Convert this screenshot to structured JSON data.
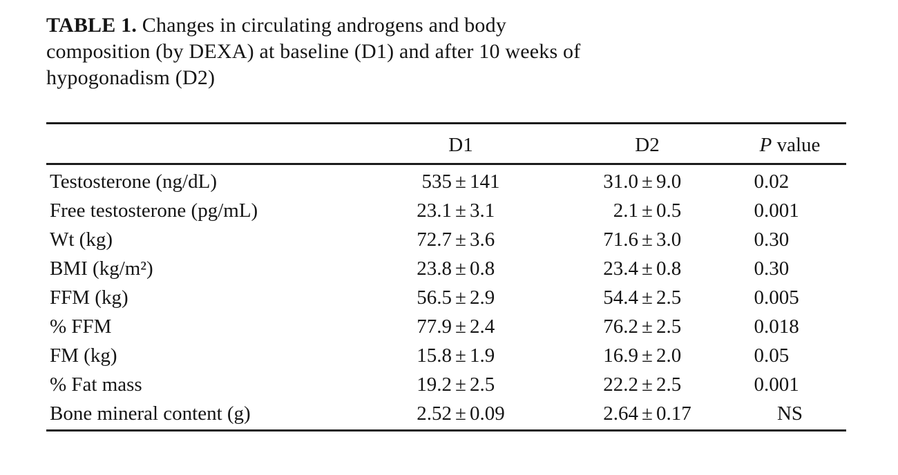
{
  "page": {
    "background": "#ffffff",
    "text_color": "#151515",
    "rule_color": "#1c1c1c"
  },
  "caption": {
    "label": "TABLE 1.",
    "line1": " Changes in circulating androgens and body",
    "line2": "composition (by DEXA) at baseline (D1) and after 10 weeks of",
    "line3": "hypogonadism (D2)"
  },
  "table": {
    "plus_minus": "±",
    "header": {
      "row_label": "",
      "d1": "D1",
      "d2": "D2",
      "p_italic": "P",
      "p_rest": " value"
    },
    "rows": [
      {
        "label": "Testosterone (ng/dL)",
        "d1_mean": "535",
        "d1_sd": "141",
        "d2_mean": "31.0",
        "d2_sd": "9.0",
        "p": "0.02",
        "p_align": "left"
      },
      {
        "label": "Free testosterone (pg/mL)",
        "d1_mean": "23.1",
        "d1_sd": "3.1",
        "d2_mean": "2.1",
        "d2_sd": "0.5",
        "p": "0.001",
        "p_align": "left"
      },
      {
        "label": "Wt (kg)",
        "d1_mean": "72.7",
        "d1_sd": "3.6",
        "d2_mean": "71.6",
        "d2_sd": "3.0",
        "p": "0.30",
        "p_align": "left"
      },
      {
        "label": "BMI (kg/m²)",
        "d1_mean": "23.8",
        "d1_sd": "0.8",
        "d2_mean": "23.4",
        "d2_sd": "0.8",
        "p": "0.30",
        "p_align": "left"
      },
      {
        "label": "FFM (kg)",
        "d1_mean": "56.5",
        "d1_sd": "2.9",
        "d2_mean": "54.4",
        "d2_sd": "2.5",
        "p": "0.005",
        "p_align": "left"
      },
      {
        "label": "% FFM",
        "d1_mean": "77.9",
        "d1_sd": "2.4",
        "d2_mean": "76.2",
        "d2_sd": "2.5",
        "p": "0.018",
        "p_align": "left"
      },
      {
        "label": "FM (kg)",
        "d1_mean": "15.8",
        "d1_sd": "1.9",
        "d2_mean": "16.9",
        "d2_sd": "2.0",
        "p": "0.05",
        "p_align": "left"
      },
      {
        "label": "% Fat mass",
        "d1_mean": "19.2",
        "d1_sd": "2.5",
        "d2_mean": "22.2",
        "d2_sd": "2.5",
        "p": "0.001",
        "p_align": "left"
      },
      {
        "label": "Bone mineral content (g)",
        "d1_mean": "2.52",
        "d1_sd": "0.09",
        "d2_mean": "2.64",
        "d2_sd": "0.17",
        "p": "NS",
        "p_align": "center"
      }
    ]
  },
  "chart_data": {
    "type": "table",
    "title": "TABLE 1. Changes in circulating androgens and body composition (by DEXA) at baseline (D1) and after 10 weeks of hypogonadism (D2)",
    "columns": [
      "",
      "D1",
      "D2",
      "P value"
    ],
    "rows": [
      [
        "Testosterone (ng/dL)",
        "535 ± 141",
        "31.0 ± 9.0",
        "0.02"
      ],
      [
        "Free testosterone (pg/mL)",
        "23.1 ± 3.1",
        "2.1 ± 0.5",
        "0.001"
      ],
      [
        "Wt (kg)",
        "72.7 ± 3.6",
        "71.6 ± 3.0",
        "0.30"
      ],
      [
        "BMI (kg/m²)",
        "23.8 ± 0.8",
        "23.4 ± 0.8",
        "0.30"
      ],
      [
        "FFM (kg)",
        "56.5 ± 2.9",
        "54.4 ± 2.5",
        "0.005"
      ],
      [
        "% FFM",
        "77.9 ± 2.4",
        "76.2 ± 2.5",
        "0.018"
      ],
      [
        "FM (kg)",
        "15.8 ± 1.9",
        "16.9 ± 2.0",
        "0.05"
      ],
      [
        "% Fat mass",
        "19.2 ± 2.5",
        "22.2 ± 2.5",
        "0.001"
      ],
      [
        "Bone mineral content (g)",
        "2.52 ± 0.09",
        "2.64 ± 0.17",
        "NS"
      ]
    ]
  }
}
